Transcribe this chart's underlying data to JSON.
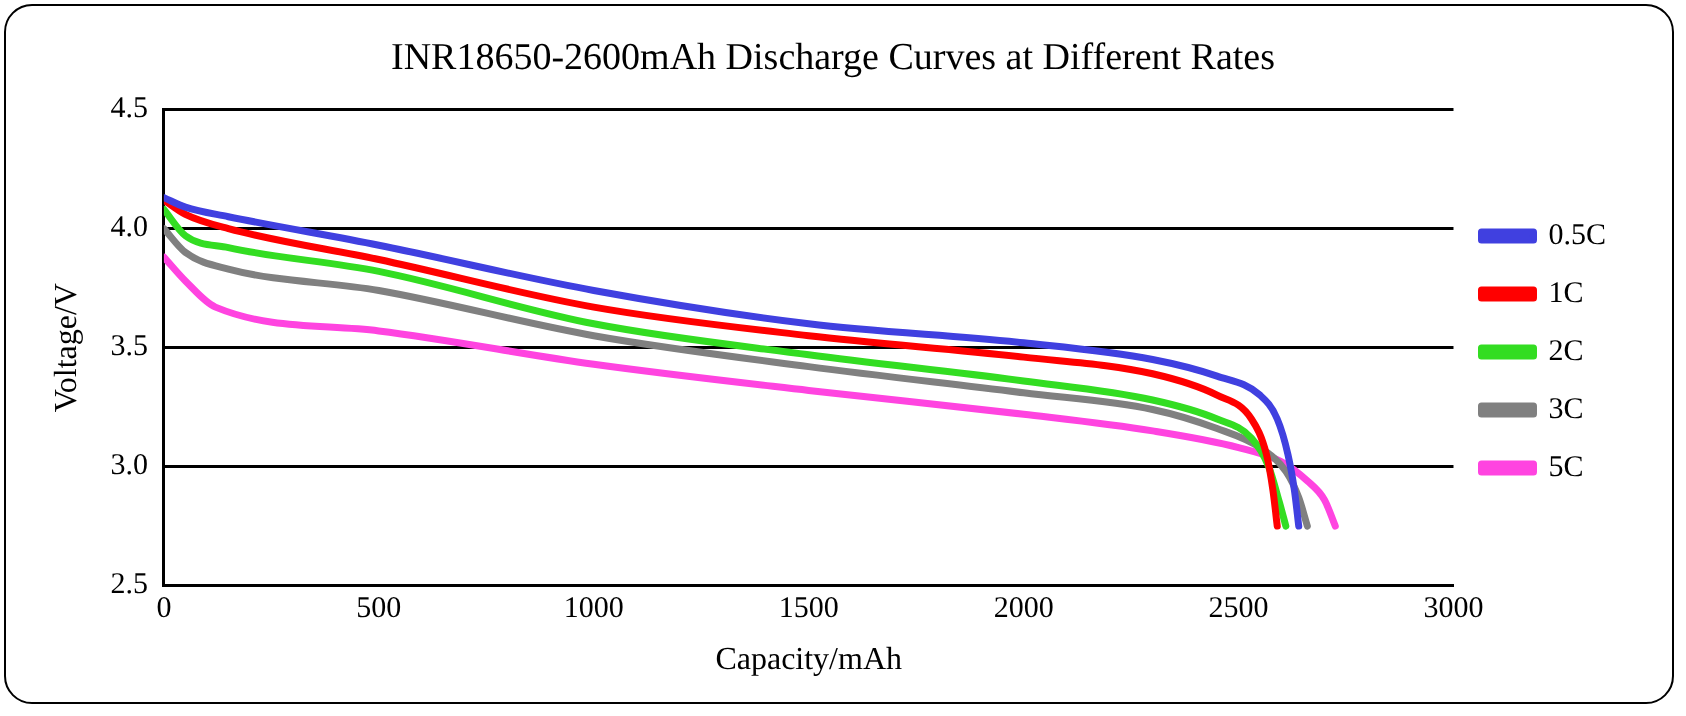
{
  "chart_data": {
    "type": "line",
    "title": "INR18650-2600mAh Discharge Curves at Different Rates",
    "xlabel": "Capacity/mAh",
    "ylabel": "Voltage/V",
    "xlim": [
      0,
      3000
    ],
    "xticks": [
      0,
      500,
      1000,
      1500,
      2000,
      2500,
      3000
    ],
    "ylim": [
      2.5,
      4.5
    ],
    "yticks": [
      2.5,
      {
        "value": 3,
        "label": "3.0"
      },
      3.5,
      {
        "value": 4,
        "label": "4.0"
      },
      4.5
    ],
    "grid": "y",
    "legend": "right",
    "marker": "none",
    "line_style": "solid",
    "series": [
      {
        "name": "0.5C",
        "color": "#4040e0",
        "x": [
          0,
          50,
          150,
          500,
          1000,
          1500,
          2000,
          2300,
          2450,
          2550,
          2590,
          2615,
          2630,
          2640
        ],
        "values": [
          4.13,
          4.09,
          4.05,
          3.93,
          3.74,
          3.6,
          3.52,
          3.45,
          3.38,
          3.3,
          3.2,
          3.05,
          2.9,
          2.75
        ]
      },
      {
        "name": "1C",
        "color": "#ff0000",
        "x": [
          0,
          50,
          150,
          500,
          1000,
          1500,
          2000,
          2300,
          2450,
          2530,
          2565,
          2580,
          2590
        ],
        "values": [
          4.12,
          4.06,
          4.0,
          3.87,
          3.67,
          3.55,
          3.46,
          3.39,
          3.3,
          3.2,
          3.05,
          2.9,
          2.75
        ]
      },
      {
        "name": "2C",
        "color": "#33dd22",
        "x": [
          0,
          50,
          150,
          500,
          1000,
          1500,
          2000,
          2300,
          2450,
          2530,
          2570,
          2595,
          2610
        ],
        "values": [
          4.08,
          3.97,
          3.92,
          3.82,
          3.6,
          3.47,
          3.36,
          3.28,
          3.2,
          3.12,
          3.0,
          2.85,
          2.75
        ]
      },
      {
        "name": "3C",
        "color": "#808080",
        "x": [
          0,
          50,
          150,
          500,
          1000,
          1500,
          2000,
          2300,
          2450,
          2550,
          2610,
          2640,
          2660
        ],
        "values": [
          4.0,
          3.9,
          3.83,
          3.74,
          3.55,
          3.42,
          3.31,
          3.24,
          3.16,
          3.08,
          2.98,
          2.87,
          2.75
        ]
      },
      {
        "name": "5C",
        "color": "#ff44e0",
        "x": [
          0,
          50,
          120,
          500,
          1000,
          1500,
          2000,
          2300,
          2500,
          2600,
          2660,
          2700,
          2725
        ],
        "values": [
          3.88,
          3.78,
          3.67,
          3.57,
          3.43,
          3.32,
          3.22,
          3.15,
          3.08,
          3.02,
          2.94,
          2.86,
          2.75
        ]
      }
    ]
  }
}
